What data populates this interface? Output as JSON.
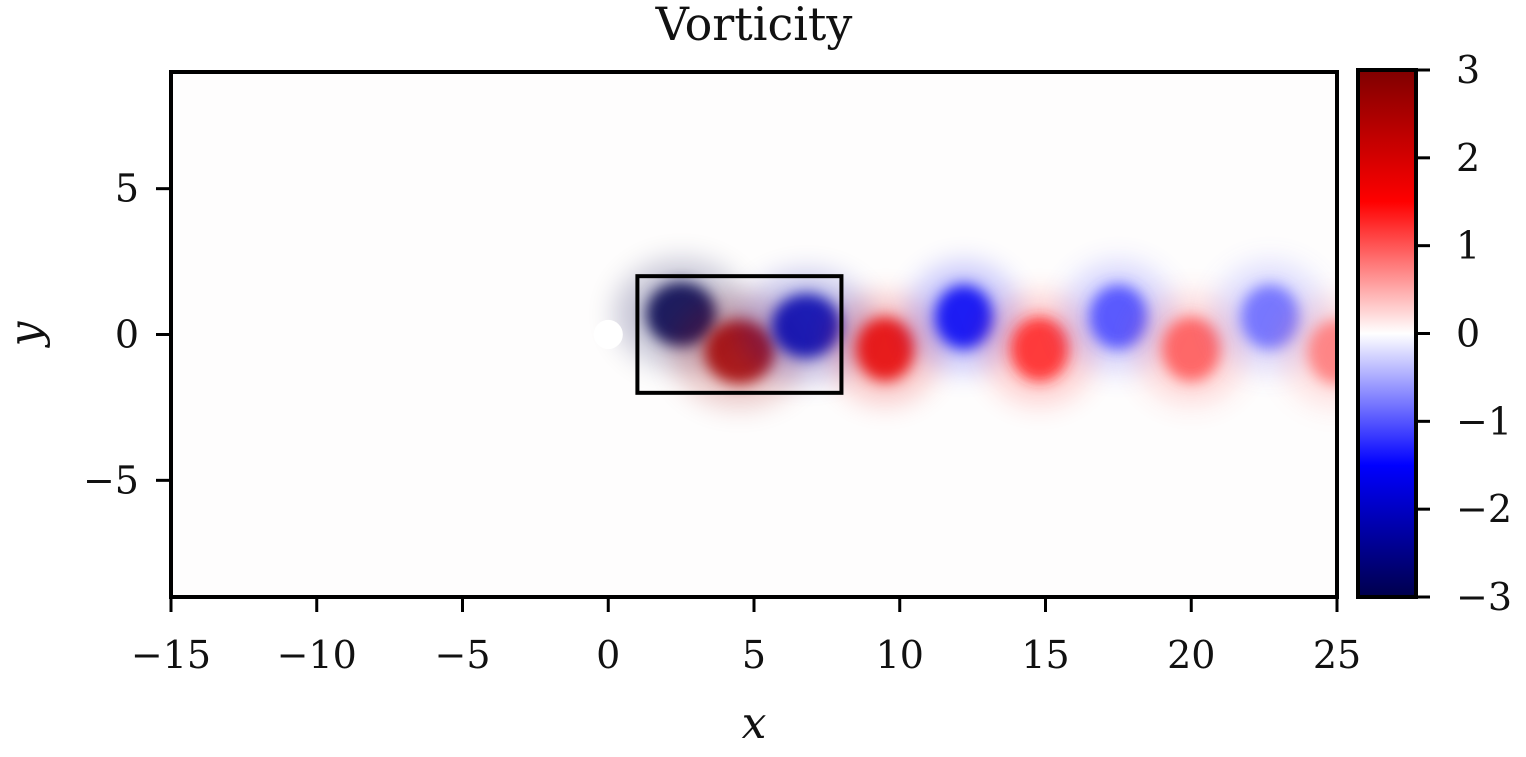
{
  "chart_data": {
    "type": "heatmap",
    "title": "Vorticity",
    "xlabel": "x",
    "ylabel": "y",
    "xlim": [
      -15,
      25
    ],
    "ylim": [
      -9,
      9
    ],
    "x_ticks": [
      -15,
      -10,
      -5,
      0,
      5,
      10,
      15,
      20,
      25
    ],
    "x_tick_labels": [
      "−15",
      "−10",
      "−5",
      "0",
      "5",
      "10",
      "15",
      "20",
      "25"
    ],
    "y_ticks": [
      -5,
      0,
      5
    ],
    "y_tick_labels": [
      "−5",
      "0",
      "5"
    ],
    "grid": false,
    "colormap": "seismic",
    "colorbar": {
      "range": [
        -3,
        3
      ],
      "ticks": [
        3,
        2,
        1,
        0,
        -1,
        -2,
        -3
      ],
      "tick_labels": [
        "3",
        "2",
        "1",
        "0",
        "−1",
        "−2",
        "−3"
      ],
      "colors": [
        "#00004c",
        "#0000ff",
        "#ffffff",
        "#ff0000",
        "#7f0000"
      ]
    },
    "cylinder": {
      "center": [
        0,
        0
      ],
      "radius": 0.5
    },
    "highlight_box": {
      "x_range": [
        1,
        8
      ],
      "y_range": [
        -2,
        2
      ]
    },
    "vortices": [
      {
        "x": 2.5,
        "y": 0.7,
        "vorticity": -3.0
      },
      {
        "x": 4.5,
        "y": -0.6,
        "vorticity": 2.6
      },
      {
        "x": 6.8,
        "y": 0.3,
        "vorticity": -2.2
      },
      {
        "x": 9.5,
        "y": -0.5,
        "vorticity": 1.8
      },
      {
        "x": 12.2,
        "y": 0.6,
        "vorticity": -1.6
      },
      {
        "x": 14.8,
        "y": -0.5,
        "vorticity": 1.3
      },
      {
        "x": 17.5,
        "y": 0.6,
        "vorticity": -1.1
      },
      {
        "x": 20.0,
        "y": -0.5,
        "vorticity": 1.0
      },
      {
        "x": 22.7,
        "y": 0.6,
        "vorticity": -0.9
      },
      {
        "x": 25.0,
        "y": -0.6,
        "vorticity": 0.8
      }
    ]
  }
}
